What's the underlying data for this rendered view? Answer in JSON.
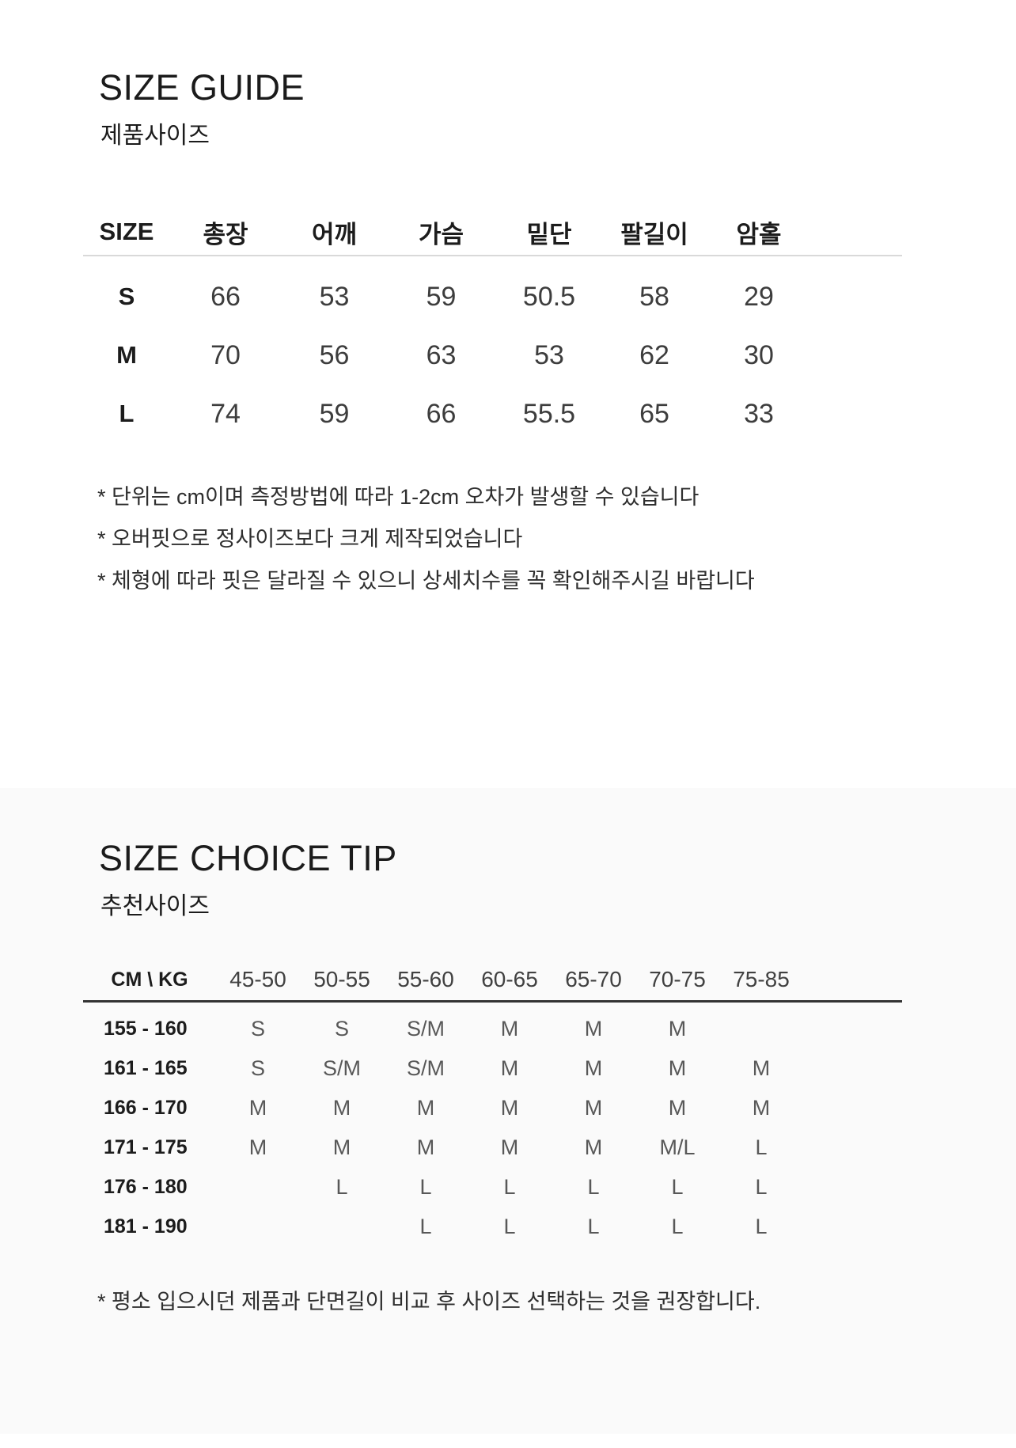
{
  "product_size": {
    "title": "SIZE GUIDE",
    "subtitle": "제품사이즈",
    "table": {
      "headers": [
        "SIZE",
        "총장",
        "어깨",
        "가슴",
        "밑단",
        "팔길이",
        "암홀"
      ],
      "rows": [
        {
          "label": "S",
          "values": [
            "66",
            "53",
            "59",
            "50.5",
            "58",
            "29"
          ]
        },
        {
          "label": "M",
          "values": [
            "70",
            "56",
            "63",
            "53",
            "62",
            "30"
          ]
        },
        {
          "label": "L",
          "values": [
            "74",
            "59",
            "66",
            "55.5",
            "65",
            "33"
          ]
        }
      ]
    },
    "notes": [
      "* 단위는 cm이며 측정방법에 따라 1-2cm 오차가 발생할 수 있습니다",
      "* 오버핏으로 정사이즈보다 크게 제작되었습니다",
      "* 체형에 따라 핏은 달라질 수 있으니 상세치수를 꼭 확인해주시길 바랍니다"
    ]
  },
  "size_choice": {
    "title": "SIZE CHOICE TIP",
    "subtitle": "추천사이즈",
    "table": {
      "corner": "CM \\ KG",
      "headers": [
        "45-50",
        "50-55",
        "55-60",
        "60-65",
        "65-70",
        "70-75",
        "75-85"
      ],
      "rows": [
        {
          "label": "155 - 160",
          "values": [
            "S",
            "S",
            "S/M",
            "M",
            "M",
            "M",
            ""
          ]
        },
        {
          "label": "161 - 165",
          "values": [
            "S",
            "S/M",
            "S/M",
            "M",
            "M",
            "M",
            "M"
          ]
        },
        {
          "label": "166 - 170",
          "values": [
            "M",
            "M",
            "M",
            "M",
            "M",
            "M",
            "M"
          ]
        },
        {
          "label": "171 - 175",
          "values": [
            "M",
            "M",
            "M",
            "M",
            "M",
            "M/L",
            "L"
          ]
        },
        {
          "label": "176 - 180",
          "values": [
            "",
            "L",
            "L",
            "L",
            "L",
            "L",
            "L"
          ]
        },
        {
          "label": "181 - 190",
          "values": [
            "",
            "",
            "L",
            "L",
            "L",
            "L",
            "L"
          ]
        }
      ]
    },
    "note": "* 평소 입으시던 제품과 단면길이 비교 후 사이즈 선택하는 것을 권장합니다."
  },
  "colors": {
    "section_gray_bg": "#fafafa",
    "light_rule": "#d9d9d9",
    "dark_rule": "#333333",
    "heading_text": "#1b1b1b",
    "value_text": "#3d3d3d"
  }
}
